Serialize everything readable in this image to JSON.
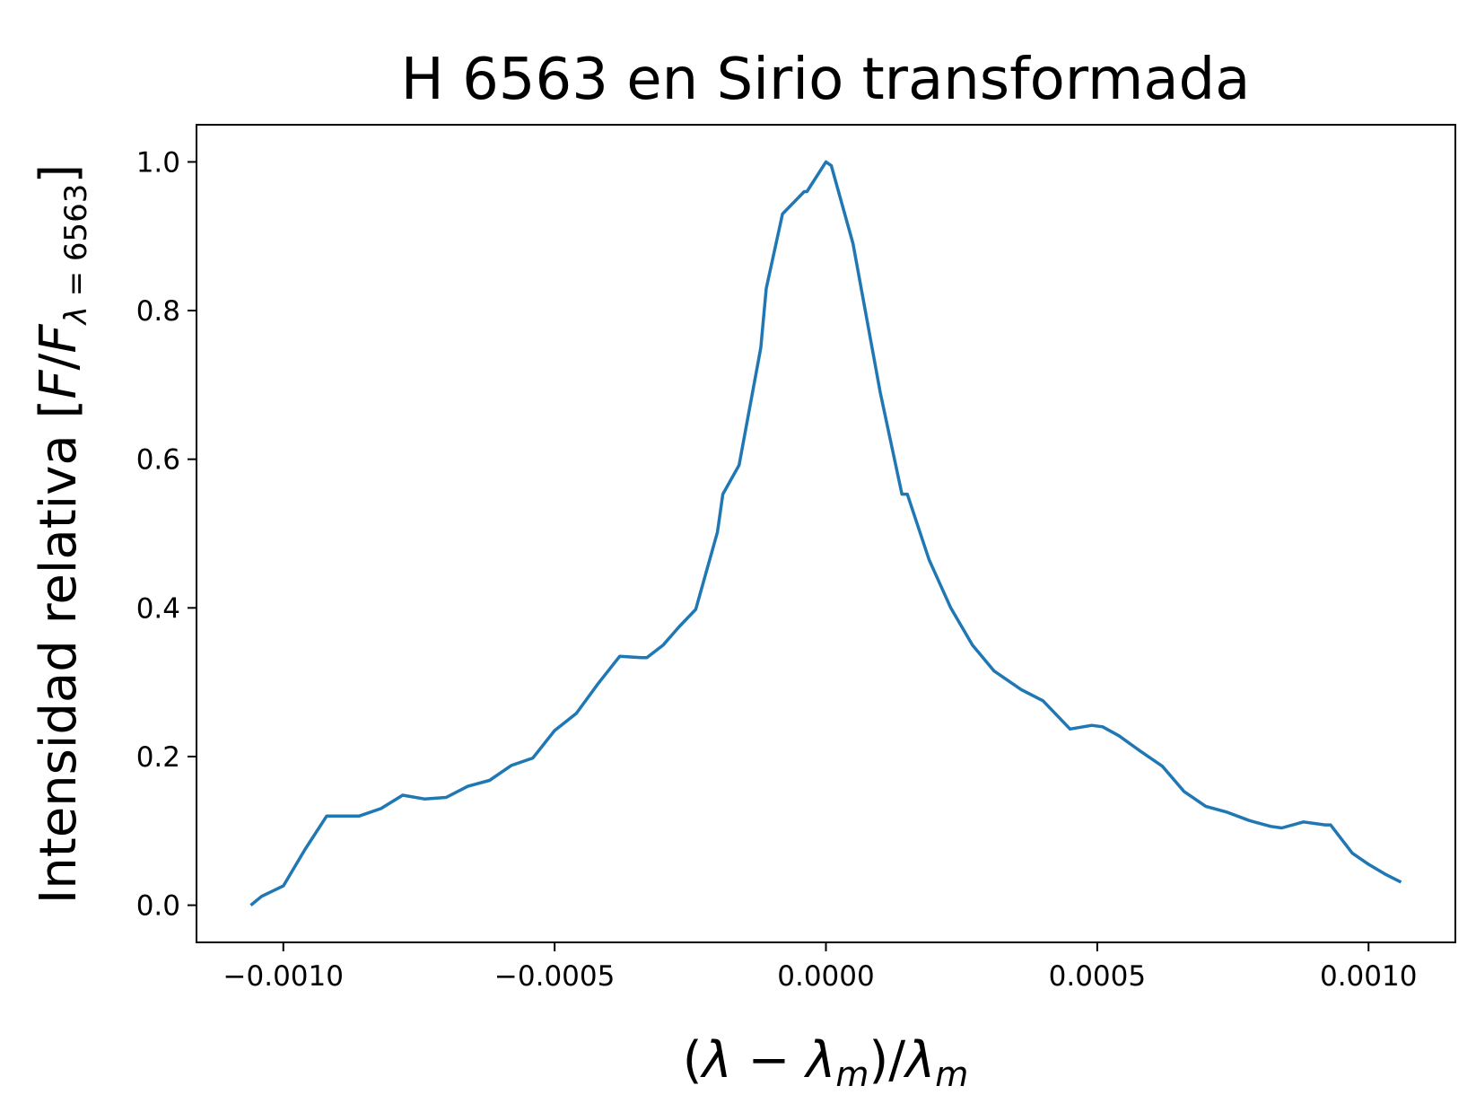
{
  "chart_data": {
    "type": "line",
    "title": "H 6563 en Sirio transformada",
    "xlabel": "(λ − λ_m)/λ_m",
    "ylabel": "Intensidad relativa [F/F_λ = 6563]",
    "xlim": [
      -0.00116,
      0.00116
    ],
    "ylim": [
      -0.05,
      1.05
    ],
    "grid": false,
    "colors": {
      "line": "#1f77b4",
      "axes": "#000000"
    },
    "x_ticks": [
      {
        "value": -0.001,
        "label": "−0.0010"
      },
      {
        "value": -0.0005,
        "label": "−0.0005"
      },
      {
        "value": 0.0,
        "label": "0.0000"
      },
      {
        "value": 0.0005,
        "label": "0.0005"
      },
      {
        "value": 0.001,
        "label": "0.0010"
      }
    ],
    "y_ticks": [
      {
        "value": 0.0,
        "label": "0.0"
      },
      {
        "value": 0.2,
        "label": "0.2"
      },
      {
        "value": 0.4,
        "label": "0.4"
      },
      {
        "value": 0.6,
        "label": "0.6"
      },
      {
        "value": 0.8,
        "label": "0.8"
      },
      {
        "value": 1.0,
        "label": "1.0"
      }
    ],
    "series": [
      {
        "x": [
          -0.00106,
          -0.00104,
          -0.001,
          -0.00096,
          -0.00092,
          -0.0009,
          -0.00088,
          -0.00086,
          -0.00082,
          -0.00078,
          -0.00074,
          -0.0007,
          -0.00066,
          -0.00062,
          -0.00058,
          -0.00054,
          -0.0005,
          -0.00046,
          -0.00042,
          -0.00038,
          -0.00034,
          -0.00033,
          -0.0003,
          -0.00027,
          -0.00024,
          -0.0002,
          -0.00019,
          -0.00016,
          -0.00012,
          -0.00011,
          -8e-05,
          -4e-05,
          -3.5e-05,
          0.0,
          1e-05,
          5e-05,
          0.0001,
          0.00014,
          0.00015,
          0.00019,
          0.00023,
          0.00027,
          0.00031,
          0.00036,
          0.0004,
          0.00045,
          0.00049,
          0.00051,
          0.00054,
          0.00058,
          0.00062,
          0.00066,
          0.0007,
          0.00074,
          0.00078,
          0.00082,
          0.00084,
          0.00088,
          0.00092,
          0.00093,
          0.00097,
          0.001,
          0.00103,
          0.00106
        ],
        "y": [
          0.0,
          0.012,
          0.026,
          0.075,
          0.12,
          0.12,
          0.12,
          0.12,
          0.13,
          0.148,
          0.143,
          0.145,
          0.16,
          0.168,
          0.188,
          0.198,
          0.235,
          0.258,
          0.298,
          0.335,
          0.333,
          0.333,
          0.35,
          0.375,
          0.398,
          0.502,
          0.553,
          0.592,
          0.75,
          0.83,
          0.93,
          0.96,
          0.96,
          1.0,
          0.995,
          0.89,
          0.69,
          0.553,
          0.553,
          0.465,
          0.4,
          0.35,
          0.315,
          0.29,
          0.275,
          0.237,
          0.242,
          0.24,
          0.228,
          0.207,
          0.187,
          0.153,
          0.133,
          0.125,
          0.114,
          0.106,
          0.104,
          0.112,
          0.108,
          0.108,
          0.07,
          0.055,
          0.042,
          0.031
        ]
      }
    ]
  }
}
